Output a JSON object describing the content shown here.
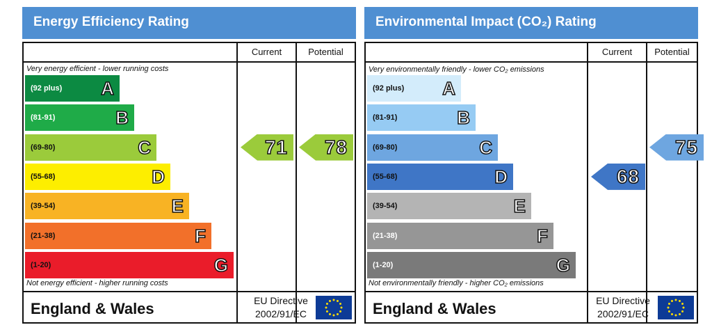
{
  "energy": {
    "title": "Energy Efficiency Rating",
    "col_current": "Current",
    "col_potential": "Potential",
    "top_caption": "Very energy efficient - lower running costs",
    "bottom_caption": "Not energy efficient - higher running costs",
    "bands": [
      {
        "range": "(92 plus)",
        "letter": "A",
        "color": "#0c8a42",
        "range_color": "#ffffff"
      },
      {
        "range": "(81-91)",
        "letter": "B",
        "color": "#1fab48",
        "range_color": "#ffffff"
      },
      {
        "range": "(69-80)",
        "letter": "C",
        "color": "#9bcb3b",
        "range_color": "#111111"
      },
      {
        "range": "(55-68)",
        "letter": "D",
        "color": "#fdee00",
        "range_color": "#111111"
      },
      {
        "range": "(39-54)",
        "letter": "E",
        "color": "#f8b324",
        "range_color": "#111111"
      },
      {
        "range": "(21-38)",
        "letter": "F",
        "color": "#f2702a",
        "range_color": "#111111"
      },
      {
        "range": "(1-20)",
        "letter": "G",
        "color": "#ea1c2a",
        "range_color": "#111111"
      }
    ],
    "current": {
      "value": "71",
      "band": "C",
      "color": "#9bcb3b"
    },
    "potential": {
      "value": "78",
      "band": "C",
      "color": "#9bcb3b"
    },
    "region": "England & Wales",
    "directive_line1": "EU Directive",
    "directive_line2": "2002/91/EC"
  },
  "environment": {
    "title": "Environmental Impact (CO₂) Rating",
    "col_current": "Current",
    "col_potential": "Potential",
    "top_caption": "Very environmentally friendly - lower CO₂ emissions",
    "bottom_caption": "Not environmentally friendly - higher CO₂ emissions",
    "bands": [
      {
        "range": "(92 plus)",
        "letter": "A",
        "color": "#d3ecfb",
        "range_color": "#111111"
      },
      {
        "range": "(81-91)",
        "letter": "B",
        "color": "#96cbf3",
        "range_color": "#111111"
      },
      {
        "range": "(69-80)",
        "letter": "C",
        "color": "#6ea6e0",
        "range_color": "#111111"
      },
      {
        "range": "(55-68)",
        "letter": "D",
        "color": "#3f76c6",
        "range_color": "#111111"
      },
      {
        "range": "(39-54)",
        "letter": "E",
        "color": "#b4b4b4",
        "range_color": "#111111"
      },
      {
        "range": "(21-38)",
        "letter": "F",
        "color": "#969696",
        "range_color": "#ffffff"
      },
      {
        "range": "(1-20)",
        "letter": "G",
        "color": "#7a7a7a",
        "range_color": "#ffffff"
      }
    ],
    "current": {
      "value": "68",
      "band": "D",
      "color": "#3f76c6"
    },
    "potential": {
      "value": "75",
      "band": "C",
      "color": "#6ea6e0"
    },
    "region": "England & Wales",
    "directive_line1": "EU Directive",
    "directive_line2": "2002/91/EC"
  },
  "icons": {
    "eu_flag": "eu-flag-icon"
  },
  "colors": {
    "header": "#4f8fd2",
    "flag_blue": "#0d3b96",
    "flag_star": "#ffdd00"
  }
}
